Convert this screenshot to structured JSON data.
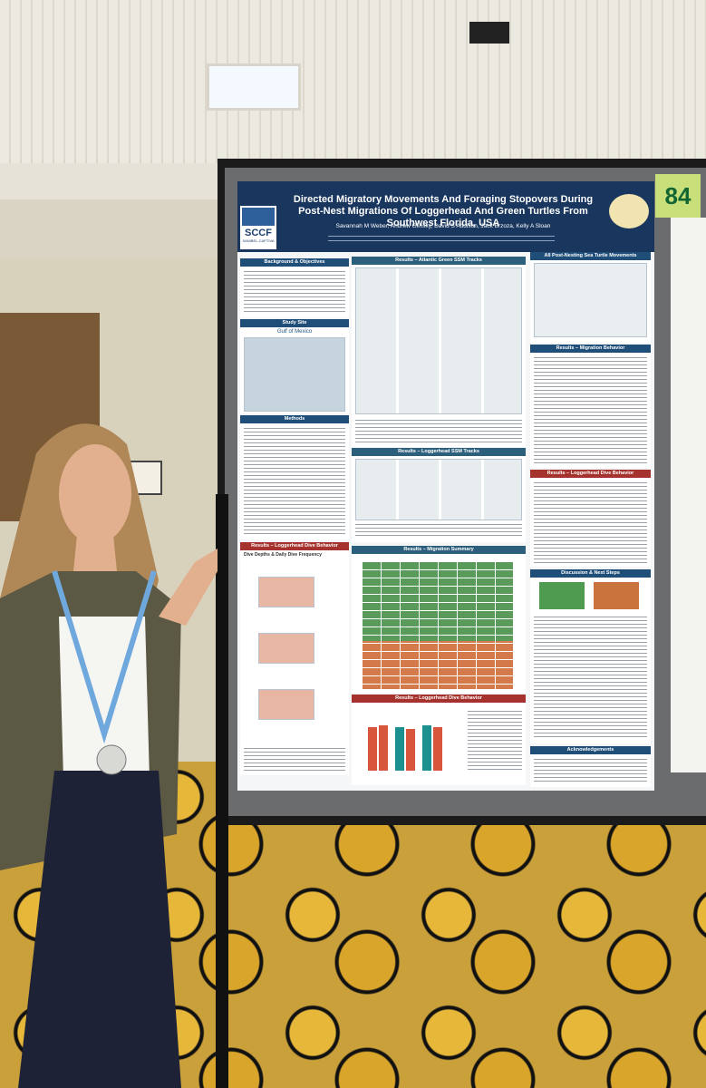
{
  "poster": {
    "title": "Directed Migratory Movements And Foraging Stopovers During Post-Nest Migrations Of Loggerhead And Green Turtles From Southwest Florida, USA",
    "authors": "Savannah M Weber, Andrew Glinsky, David S Addison, Jack Brzoza, Kelly A Sloan",
    "logo": {
      "name": "SCCF",
      "subtitle": "SANIBEL-CAPTIVA"
    },
    "sections": {
      "background": "Background & Objectives",
      "study_site": "Study Site",
      "study_site_map": "Gulf of Mexico",
      "methods": "Methods",
      "dive_left": "Results – Loggerhead Dive Behavior",
      "dive_left_sub": "Dive Depths & Daily Dive Frequency",
      "green_tracks": "Results – Atlantic Green SSM Tracks",
      "loggerhead_tracks": "Results – Loggerhead SSM Tracks",
      "migration_summary": "Results – Migration Summary",
      "dive_middle": "Results – Loggerhead Dive Behavior",
      "all_movements": "All Post-Nesting Sea Turtle Movements",
      "migration_behavior": "Results – Migration Behavior",
      "dive_right": "Results – Loggerhead Dive Behavior",
      "discussion": "Discussion & Next Steps",
      "acknowledgements": "Acknowledgements"
    }
  },
  "board_number": "84"
}
